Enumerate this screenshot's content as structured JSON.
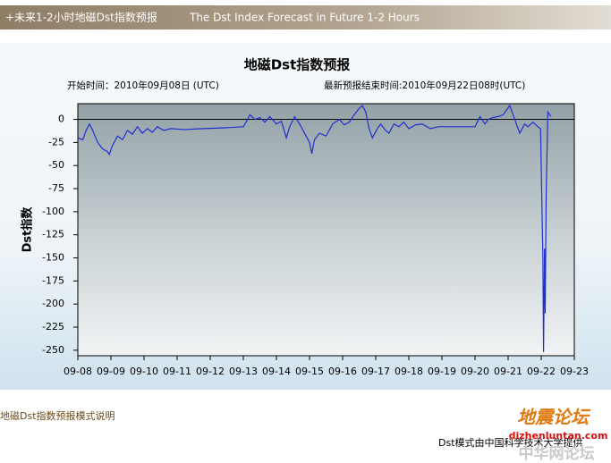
{
  "header": {
    "title_cn": "+未来1-2小时地磁Dst指数预报",
    "title_en": "The Dst Index Forecast in Future 1-2 Hours"
  },
  "chart_data": {
    "type": "line",
    "title": "地磁Dst指数预报",
    "subtitle_left": "开始时间：2010年09月08日 (UTC)",
    "subtitle_right": "最新预报结束时间:2010年09月22日08时(UTC)",
    "y_label": "Dst指数",
    "x": [
      0,
      0.15,
      0.25,
      0.35,
      0.45,
      0.6,
      0.75,
      0.9,
      0.95,
      1.05,
      1.2,
      1.35,
      1.5,
      1.65,
      1.8,
      1.95,
      2.1,
      2.25,
      2.4,
      2.6,
      2.8,
      3.2,
      3.8,
      4.5,
      5.0,
      5.1,
      5.2,
      5.35,
      5.5,
      5.65,
      5.8,
      6.0,
      6.15,
      6.3,
      6.4,
      6.55,
      6.7,
      6.85,
      7.0,
      7.07,
      7.15,
      7.3,
      7.5,
      7.7,
      7.9,
      8.05,
      8.2,
      8.35,
      8.5,
      8.6,
      8.7,
      8.8,
      8.9,
      9.05,
      9.15,
      9.3,
      9.4,
      9.55,
      9.7,
      9.85,
      10.0,
      10.2,
      10.4,
      10.65,
      10.9,
      11.5,
      12.0,
      12.15,
      12.3,
      12.4,
      12.55,
      12.7,
      12.85,
      12.95,
      13.05,
      13.2,
      13.35,
      13.5,
      13.6,
      13.75,
      13.9,
      13.98,
      14.05,
      14.07,
      14.1,
      14.12,
      14.15,
      14.2,
      14.3
    ],
    "series": [
      {
        "color": "#1f2fd0",
        "values": [
          -20,
          -22,
          -12,
          -5,
          -12,
          -25,
          -32,
          -35,
          -38,
          -28,
          -18,
          -22,
          -12,
          -16,
          -8,
          -15,
          -10,
          -14,
          -8,
          -12,
          -10,
          -11,
          -10,
          -9,
          -8,
          -2,
          5,
          0,
          2,
          -3,
          3,
          -5,
          -2,
          -20,
          -8,
          3,
          -5,
          -15,
          -25,
          -37,
          -22,
          -15,
          -18,
          -5,
          0,
          -6,
          -3,
          5,
          12,
          15,
          8,
          -10,
          -20,
          -10,
          -5,
          -12,
          -15,
          -5,
          -8,
          -3,
          -10,
          -6,
          -5,
          -10,
          -8,
          -8,
          -8,
          3,
          -5,
          0,
          2,
          3,
          5,
          10,
          15,
          0,
          -15,
          -5,
          -8,
          -3,
          -8,
          -10,
          -150,
          -252,
          -140,
          -210,
          -80,
          8,
          3
        ]
      }
    ],
    "xlim": [
      0,
      15
    ],
    "xticks": [
      {
        "value": 0,
        "label": "09-08"
      },
      {
        "value": 1,
        "label": "09-09"
      },
      {
        "value": 2,
        "label": "09-10"
      },
      {
        "value": 3,
        "label": "09-11"
      },
      {
        "value": 4,
        "label": "09-12"
      },
      {
        "value": 5,
        "label": "09-13"
      },
      {
        "value": 6,
        "label": "09-14"
      },
      {
        "value": 7,
        "label": "09-15"
      },
      {
        "value": 8,
        "label": "09-16"
      },
      {
        "value": 9,
        "label": "09-17"
      },
      {
        "value": 10,
        "label": "09-18"
      },
      {
        "value": 11,
        "label": "09-19"
      },
      {
        "value": 12,
        "label": "09-20"
      },
      {
        "value": 13,
        "label": "09-21"
      },
      {
        "value": 14,
        "label": "09-22"
      },
      {
        "value": 15,
        "label": "09-23"
      }
    ],
    "ylim": [
      -256,
      17
    ],
    "yticks": [
      0,
      -25,
      -50,
      -75,
      -100,
      -125,
      -150,
      -175,
      -200,
      -225,
      -250
    ],
    "baseline": 0
  },
  "footer": {
    "link": "地磁Dst指数预报模式说明",
    "credit": "Dst模式由中国科学技术大学提供",
    "watermark_cn": "地震论坛",
    "watermark_url": "dizhenluntan.com",
    "watermark_site": "中华网论坛"
  }
}
